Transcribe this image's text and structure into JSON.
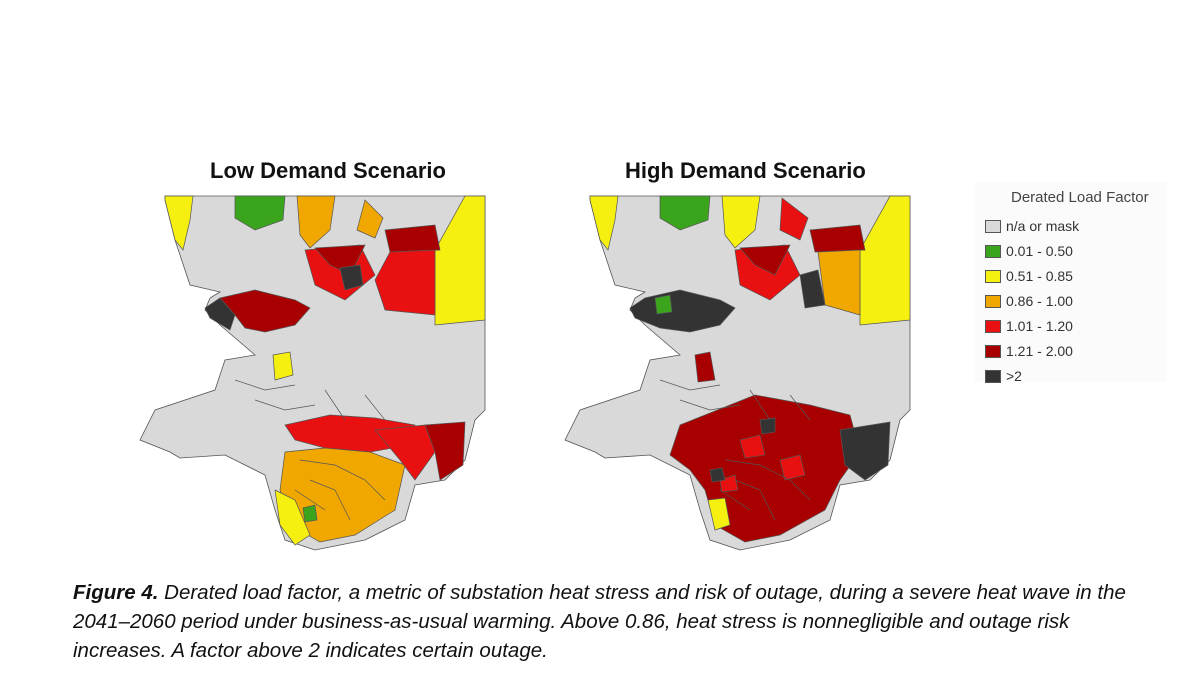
{
  "maps": {
    "low": {
      "title": "Low Demand Scenario",
      "zones": [
        {
          "category": "yellow",
          "desc": "northwest tip"
        },
        {
          "category": "green",
          "desc": "north desert"
        },
        {
          "category": "orange",
          "desc": "north central"
        },
        {
          "category": "orange",
          "desc": "north east small"
        },
        {
          "category": "yellow",
          "desc": "east desert"
        },
        {
          "category": "darkred",
          "desc": "northeast block"
        },
        {
          "category": "red",
          "desc": "central north"
        },
        {
          "category": "red",
          "desc": "central east"
        },
        {
          "category": "darkred",
          "desc": "central cluster"
        },
        {
          "category": "dark",
          "desc": "central small"
        },
        {
          "category": "darkred",
          "desc": "west corridor"
        },
        {
          "category": "dark",
          "desc": "west corridor end"
        },
        {
          "category": "yellow",
          "desc": "valley small"
        },
        {
          "category": "red",
          "desc": "basin north"
        },
        {
          "category": "orange",
          "desc": "basin"
        },
        {
          "category": "yellow",
          "desc": "coast"
        },
        {
          "category": "green",
          "desc": "basin patch"
        },
        {
          "category": "red",
          "desc": "basin east"
        },
        {
          "category": "darkred",
          "desc": "basin far east"
        }
      ]
    },
    "high": {
      "title": "High Demand Scenario",
      "zones": [
        {
          "category": "yellow",
          "desc": "northwest tip"
        },
        {
          "category": "green",
          "desc": "north desert"
        },
        {
          "category": "yellow",
          "desc": "north central"
        },
        {
          "category": "red",
          "desc": "north east small"
        },
        {
          "category": "yellow",
          "desc": "east desert"
        },
        {
          "category": "darkred",
          "desc": "northeast block"
        },
        {
          "category": "orange",
          "desc": "central east"
        },
        {
          "category": "red",
          "desc": "central north"
        },
        {
          "category": "darkred",
          "desc": "central cluster"
        },
        {
          "category": "dark",
          "desc": "central small"
        },
        {
          "category": "dark",
          "desc": "west corridor"
        },
        {
          "category": "green",
          "desc": "west corridor patch"
        },
        {
          "category": "darkred",
          "desc": "valley small"
        },
        {
          "category": "darkred",
          "desc": "basin"
        },
        {
          "category": "red",
          "desc": "basin patches"
        },
        {
          "category": "dark",
          "desc": "basin east"
        },
        {
          "category": "yellow",
          "desc": "coast"
        },
        {
          "category": "dark",
          "desc": "basin dark patches"
        }
      ]
    }
  },
  "legend": {
    "title": "Derated Load Factor",
    "items": [
      {
        "label": "n/a or mask",
        "color": "#d9d9d9"
      },
      {
        "label": "0.01 - 0.50",
        "color": "#3aa51c"
      },
      {
        "label": "0.51 - 0.85",
        "color": "#f5f010"
      },
      {
        "label": "0.86 - 1.00",
        "color": "#f0a800"
      },
      {
        "label": "1.01 - 1.20",
        "color": "#e81010"
      },
      {
        "label": "1.21 - 2.00",
        "color": "#a80000"
      },
      {
        "label": ">2",
        "color": "#333333"
      }
    ]
  },
  "colors": {
    "gray": "#d9d9d9",
    "green": "#3aa51c",
    "yellow": "#f5f010",
    "orange": "#f0a800",
    "red": "#e81010",
    "darkred": "#a80000",
    "dark": "#333333",
    "border": "#555555"
  },
  "caption": {
    "label": "Figure 4.",
    "text": " Derated load factor, a metric of substation heat stress and risk of outage, during a severe heat wave in the 2041–2060 period under business-as-usual warming. Above 0.86, heat stress is nonnegligible and outage risk increases. A factor above 2 indicates certain outage."
  }
}
